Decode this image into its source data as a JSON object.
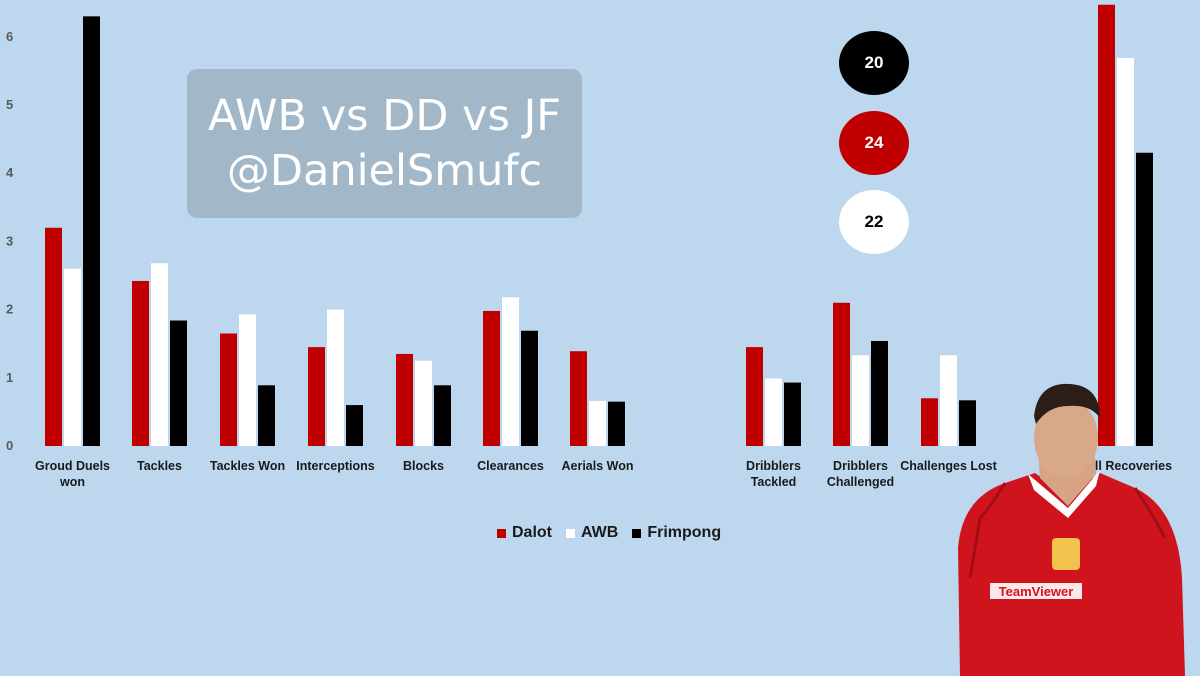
{
  "title": {
    "line1": "AWB vs DD vs JF",
    "line2": "@DanielSmufc"
  },
  "circles": [
    {
      "value": "20",
      "color": "#000000"
    },
    {
      "value": "24",
      "color": "#c00000"
    },
    {
      "value": "22",
      "color": "#ffffff"
    }
  ],
  "colors": {
    "Dalot": "#c00000",
    "AWB": "#ffffff",
    "Frimpong": "#000000",
    "background": "#bdd7ee"
  },
  "legend": [
    "Dalot",
    "AWB",
    "Frimpong"
  ],
  "player_image": "footballer-in-red-kit",
  "chart_data": {
    "type": "bar",
    "title": "",
    "xlabel": "",
    "ylabel": "",
    "ylim": [
      0,
      6.5
    ],
    "yticks": [
      0,
      1,
      2,
      3,
      4,
      5,
      6
    ],
    "grid": false,
    "legend_position": "bottom",
    "categories": [
      [
        "Groud Duels",
        "won"
      ],
      [
        "Tackles"
      ],
      [
        "Tackles Won"
      ],
      [
        "Interceptions"
      ],
      [
        "Blocks"
      ],
      [
        "Clearances"
      ],
      [
        "Aerials Won"
      ],
      [
        "Dribblers",
        "Tackled"
      ],
      [
        "Dribblers",
        "Challenged"
      ],
      [
        "Challenges Lost"
      ],
      [
        "Ball Recoveries"
      ]
    ],
    "series": [
      {
        "name": "Dalot",
        "values": [
          3.2,
          2.42,
          1.65,
          1.45,
          1.35,
          1.98,
          1.39,
          1.45,
          2.1,
          0.7,
          6.47
        ]
      },
      {
        "name": "AWB",
        "values": [
          2.6,
          2.68,
          1.93,
          2.0,
          1.25,
          2.18,
          0.66,
          0.99,
          1.33,
          1.33,
          5.69
        ]
      },
      {
        "name": "Frimpong",
        "values": [
          6.3,
          1.84,
          0.89,
          0.6,
          0.89,
          1.69,
          0.65,
          0.93,
          1.54,
          0.67,
          4.3
        ]
      }
    ]
  }
}
